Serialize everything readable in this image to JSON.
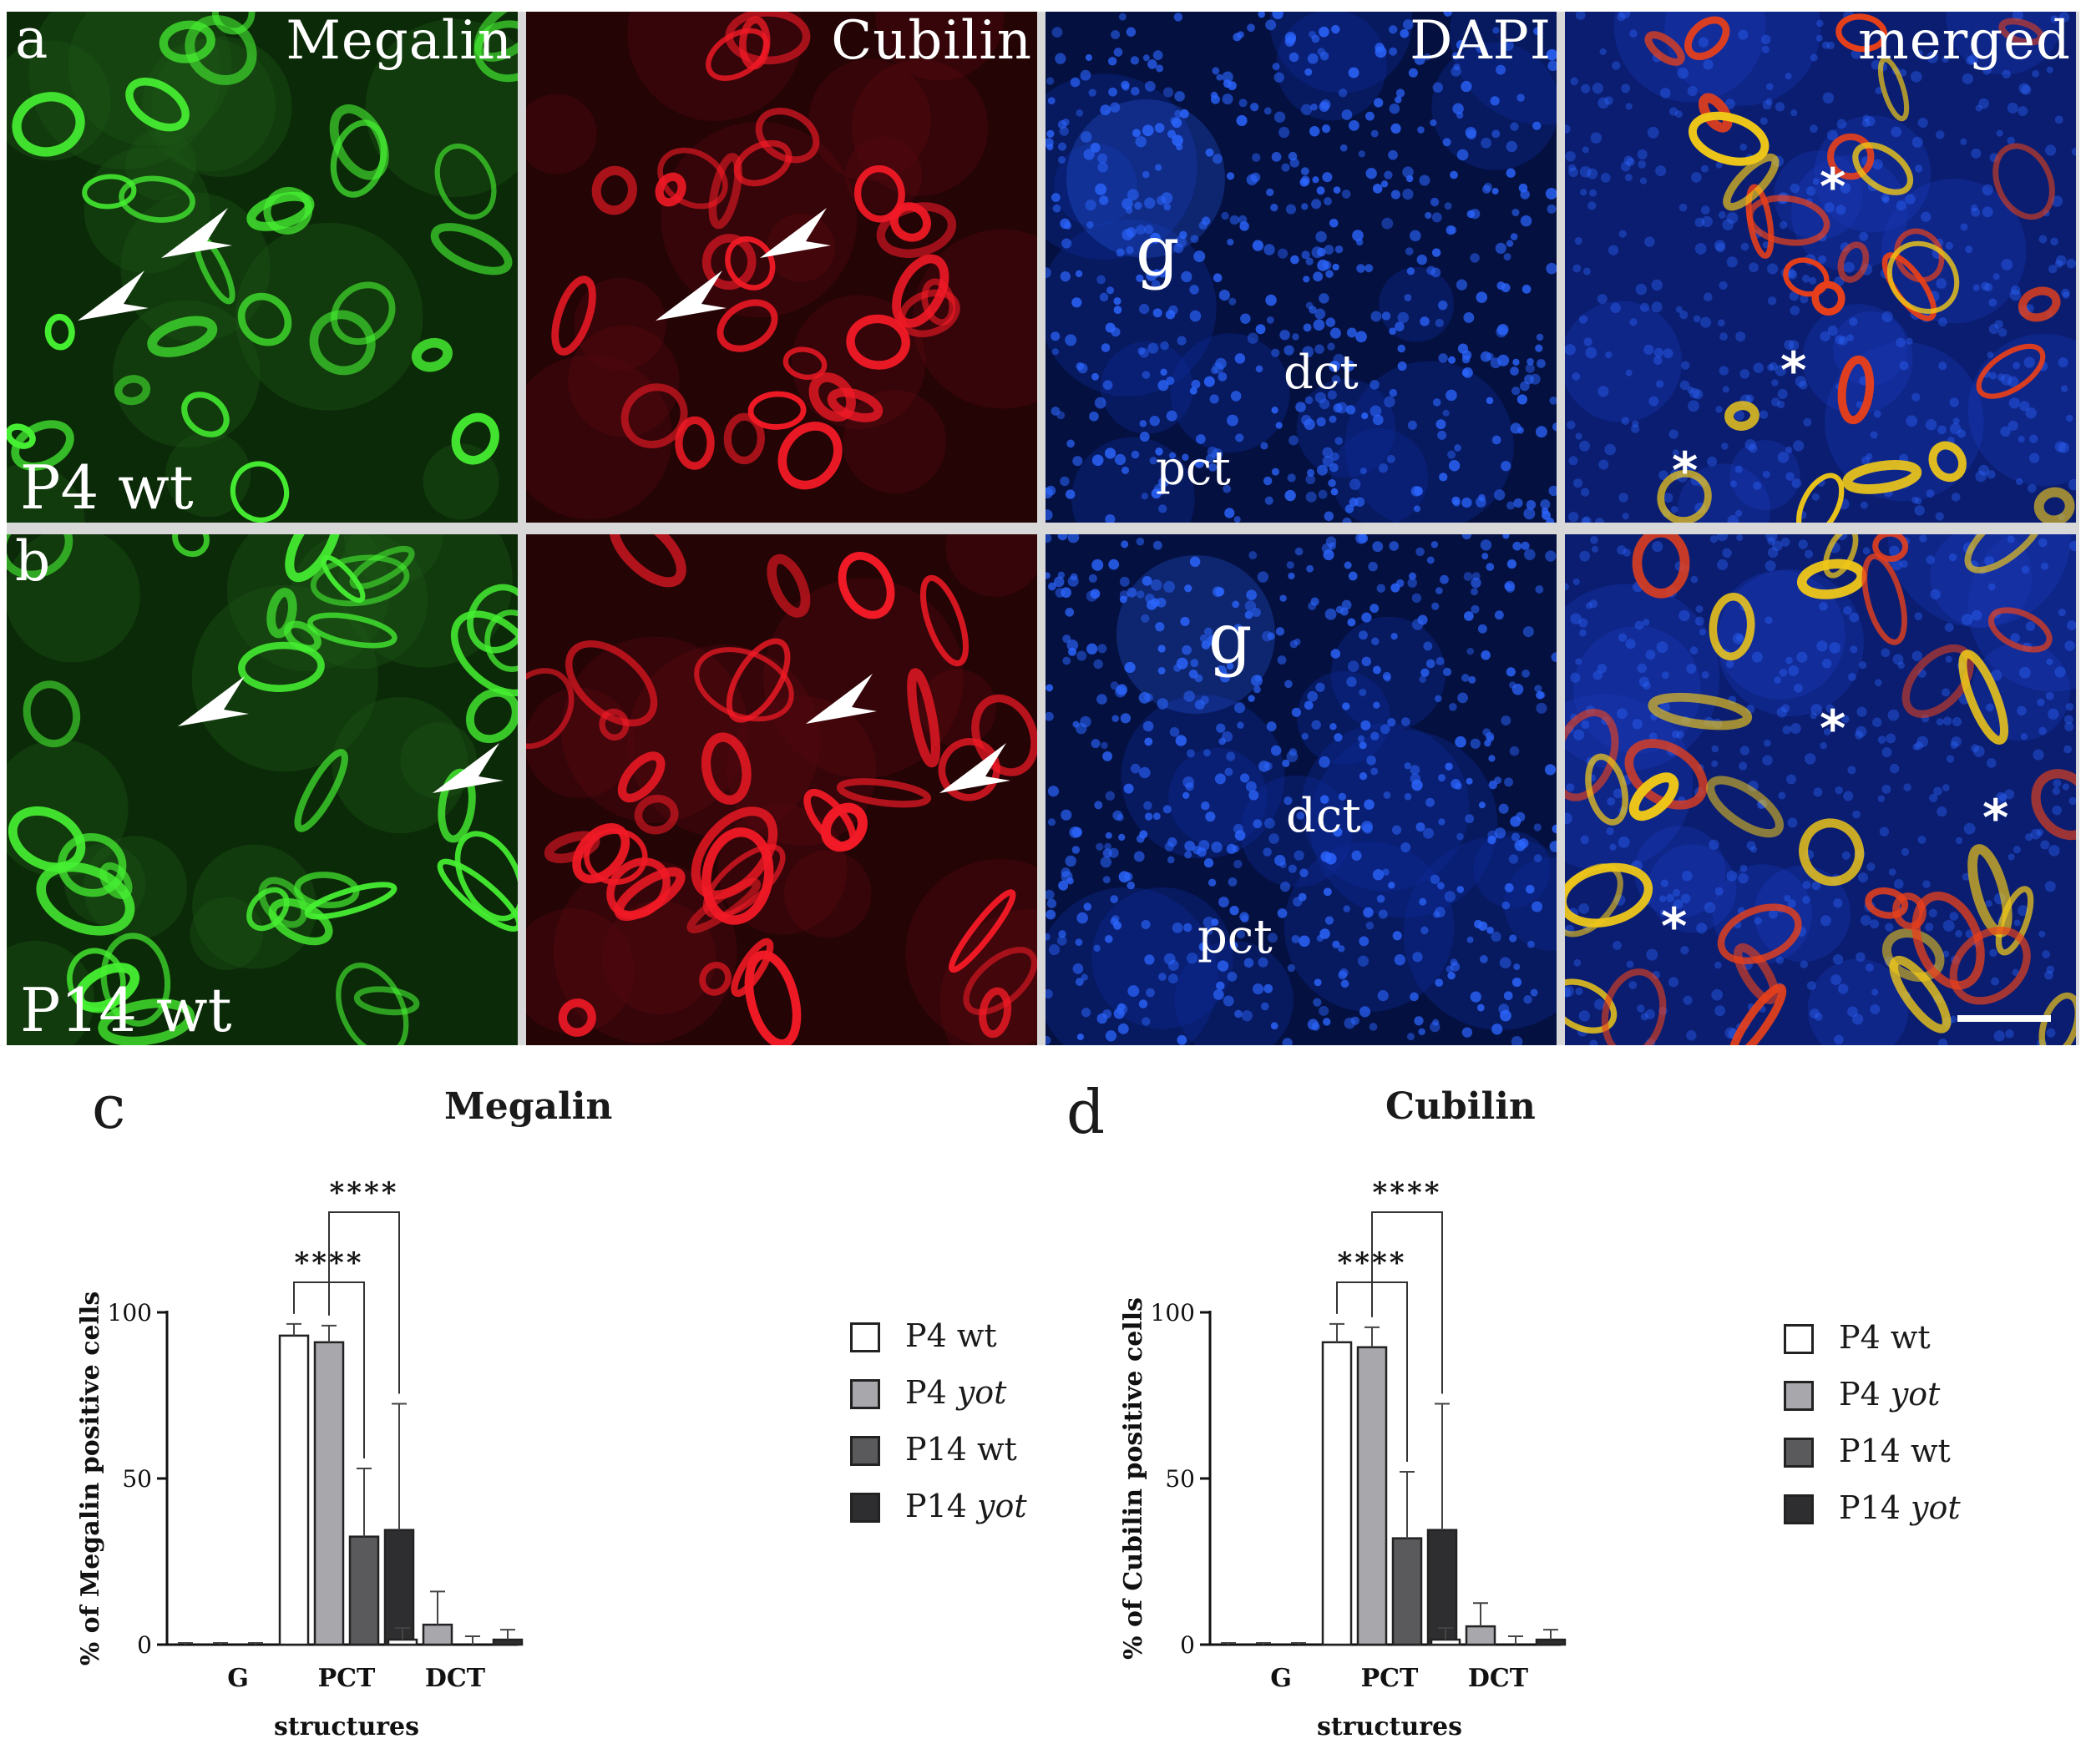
{
  "figure": {
    "micrographs": {
      "channels": [
        "Megalin",
        "Cubilin",
        "DAPI",
        "merged"
      ],
      "channel_colors": [
        "#22d81c",
        "#e8101a",
        "#1440e8",
        "#c8a030"
      ],
      "rows": [
        {
          "letter": "a",
          "name": "P4 wt"
        },
        {
          "letter": "b",
          "name": "P14 wt"
        }
      ],
      "structure_labels": {
        "glomerulus": "g",
        "distal": "dct",
        "proximal": "pct"
      },
      "asterisk": "*"
    },
    "chart_c": {
      "letter": "c"
    },
    "chart_d": {
      "letter": "d"
    }
  },
  "chart_data": [
    {
      "type": "bar",
      "title": "Megalin",
      "xlabel": "structures",
      "ylabel": "% of Megalin positive cells",
      "categories": [
        "G",
        "PCT",
        "DCT"
      ],
      "ylim": [
        0,
        100
      ],
      "yticks": [
        "0",
        "50",
        "100"
      ],
      "series": [
        {
          "name": "P4 wt",
          "color": "#ffffff",
          "values": [
            0,
            93,
            1.5
          ],
          "errors": [
            0.5,
            3.5,
            3.5
          ]
        },
        {
          "name": "P4 yot",
          "name_plain": "P4",
          "name_italic": "yot",
          "color": "#a8a8ac",
          "values": [
            0,
            91,
            6
          ],
          "errors": [
            0.5,
            5,
            10
          ]
        },
        {
          "name": "P14 wt",
          "color": "#5a5a5c",
          "values": [
            0,
            32.5,
            0
          ],
          "errors": [
            0.5,
            20.5,
            2.5
          ]
        },
        {
          "name": "P14 yot",
          "name_plain": "P14",
          "name_italic": "yot",
          "color": "#2e2e30",
          "values": [
            0,
            34.5,
            1.5
          ],
          "errors": [
            1.5,
            38,
            3
          ]
        }
      ],
      "significance": [
        {
          "from_series": 0,
          "to_series": 2,
          "label": "****"
        },
        {
          "from_series": 1,
          "to_series": 3,
          "label": "****"
        }
      ]
    },
    {
      "type": "bar",
      "title": "Cubilin",
      "xlabel": "structures",
      "ylabel": "% of Cubilin positive cells",
      "categories": [
        "G",
        "PCT",
        "DCT"
      ],
      "ylim": [
        0,
        100
      ],
      "yticks": [
        "0",
        "50",
        "100"
      ],
      "series": [
        {
          "name": "P4 wt",
          "color": "#ffffff",
          "values": [
            0,
            91,
            1.5
          ],
          "errors": [
            0.5,
            5.5,
            3.5
          ]
        },
        {
          "name": "P4 yot",
          "name_plain": "P4",
          "name_italic": "yot",
          "color": "#a8a8ac",
          "values": [
            0,
            89.5,
            5.5
          ],
          "errors": [
            0.5,
            6,
            7
          ]
        },
        {
          "name": "P14 wt",
          "color": "#5a5a5c",
          "values": [
            0,
            32,
            0
          ],
          "errors": [
            0.5,
            20,
            2.5
          ]
        },
        {
          "name": "P14 yot",
          "name_plain": "P14",
          "name_italic": "yot",
          "color": "#2e2e30",
          "values": [
            0,
            34.5,
            1.5
          ],
          "errors": [
            1.5,
            38,
            3
          ]
        }
      ],
      "significance": [
        {
          "from_series": 0,
          "to_series": 2,
          "label": "****"
        },
        {
          "from_series": 1,
          "to_series": 3,
          "label": "****"
        }
      ]
    }
  ]
}
